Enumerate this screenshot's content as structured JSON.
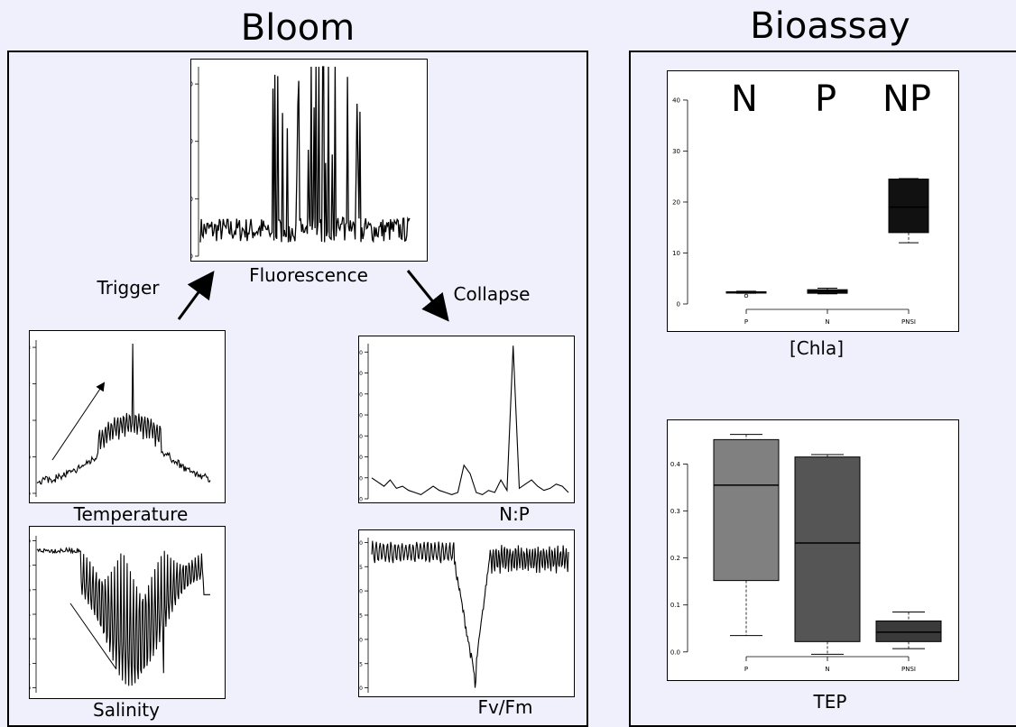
{
  "titles": {
    "bloom": "Bloom",
    "bioassay": "Bioassay"
  },
  "labels": {
    "fluorescence": "Fluorescence",
    "trigger": "Trigger",
    "collapse": "Collapse",
    "temperature": "Temperature",
    "salinity": "Salinity",
    "np": "N:P",
    "fvfm": "Fv/Fm",
    "chla": "[Chla]",
    "tep": "TEP"
  },
  "chart_data": [
    {
      "id": "fluorescence",
      "type": "line",
      "y_ticks": [
        0,
        50,
        100,
        150
      ],
      "ylim": [
        0,
        165
      ],
      "description_values": "noisy baseline 10-40 with spikes to 160"
    },
    {
      "id": "temperature",
      "type": "line",
      "y_ticks": [
        19,
        20,
        21,
        22,
        23
      ],
      "ylim": [
        18.9,
        23.2
      ],
      "key_values": {
        "start": 19.2,
        "peak": 23.1,
        "end": 19.6
      }
    },
    {
      "id": "salinity",
      "type": "line",
      "y_ticks": [
        "31.0",
        "31.5",
        "32.0",
        "32.5",
        "33.0",
        "33.5",
        "34.0"
      ],
      "ylim": [
        30.9,
        34.1
      ],
      "key_values": {
        "baseline": 33.8,
        "min": 31.3,
        "end": 32.9
      }
    },
    {
      "id": "np",
      "type": "line",
      "y_ticks": [
        0,
        10,
        20,
        30,
        40,
        50,
        60,
        70
      ],
      "ylim": [
        0,
        74
      ],
      "y": [
        10,
        8,
        6,
        9,
        5,
        6,
        4,
        3,
        2,
        4,
        6,
        4,
        3,
        2,
        3,
        16,
        12,
        3,
        2,
        4,
        3,
        9,
        4,
        73,
        5,
        7,
        9,
        6,
        4,
        5,
        7,
        6,
        3
      ]
    },
    {
      "id": "fvfm",
      "type": "line",
      "y_ticks": [
        "0.30",
        "0.35",
        "0.40",
        "0.45",
        "0.50",
        "0.55",
        "0.60"
      ],
      "ylim": [
        0.29,
        0.61
      ],
      "key_values": {
        "baseline": 0.58,
        "min": 0.3,
        "recovery": 0.57
      }
    },
    {
      "id": "chla",
      "type": "box",
      "categories": [
        "P",
        "N",
        "PNSI"
      ],
      "ylim": [
        0,
        43
      ],
      "y_ticks": [
        0,
        10,
        20,
        30,
        40
      ],
      "annotations": [
        "N",
        "P",
        "NP"
      ],
      "boxes": [
        {
          "min": 2.1,
          "q1": 2.2,
          "median": 2.3,
          "q3": 2.4,
          "max": 2.5,
          "outliers": [
            1.6
          ]
        },
        {
          "min": 2.0,
          "q1": 2.1,
          "median": 2.5,
          "q3": 2.8,
          "max": 3.1,
          "outliers": []
        },
        {
          "min": 12.0,
          "q1": 14.0,
          "median": 19.0,
          "q3": 24.5,
          "max": 24.6,
          "outliers": []
        }
      ],
      "colors": [
        "#111111",
        "#111111",
        "#111111"
      ]
    },
    {
      "id": "tep",
      "type": "box",
      "categories": [
        "P",
        "N",
        "PNSI"
      ],
      "ylim": [
        -0.01,
        0.47
      ],
      "y_ticks": [
        "0.0",
        "0.1",
        "0.2",
        "0.3",
        "0.4"
      ],
      "boxes": [
        {
          "min": 0.035,
          "q1": 0.152,
          "median": 0.355,
          "q3": 0.452,
          "max": 0.463
        },
        {
          "min": -0.005,
          "q1": 0.022,
          "median": 0.232,
          "q3": 0.415,
          "max": 0.42
        },
        {
          "min": 0.007,
          "q1": 0.022,
          "median": 0.042,
          "q3": 0.066,
          "max": 0.085
        }
      ],
      "colors": [
        "#808080",
        "#555555",
        "#3a3a3a"
      ]
    }
  ]
}
